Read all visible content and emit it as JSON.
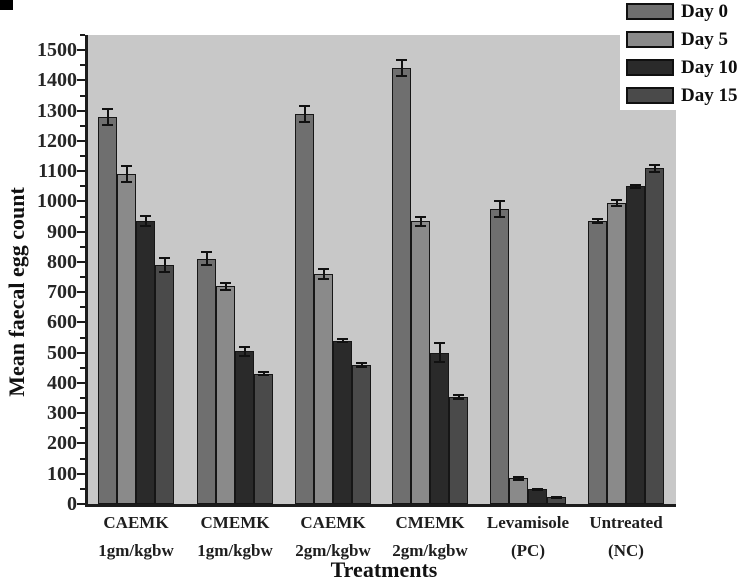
{
  "figure": {
    "background": "#ffffff",
    "corner_mark_color": "#000000"
  },
  "chart_data": {
    "type": "bar",
    "title": "",
    "xlabel": "Treatments",
    "ylabel": "Mean faecal egg count",
    "categories": [
      [
        "CAEMK",
        "1gm/kgbw"
      ],
      [
        "CMEMK",
        "1gm/kgbw"
      ],
      [
        "CAEMK",
        "2gm/kgbw"
      ],
      [
        "CMEMK",
        "2gm/kgbw"
      ],
      [
        "Levamisole",
        "(PC)"
      ],
      [
        "Untreated",
        "(NC)"
      ]
    ],
    "series": [
      {
        "name": "Day 0",
        "color": "#6f6f6f",
        "values": [
          1280,
          810,
          1290,
          1440,
          975,
          935
        ],
        "errors": [
          30,
          25,
          30,
          30,
          30,
          10
        ]
      },
      {
        "name": "Day 5",
        "color": "#8a8a8a",
        "values": [
          1090,
          720,
          760,
          935,
          85,
          995
        ],
        "errors": [
          30,
          15,
          20,
          18,
          8,
          12
        ]
      },
      {
        "name": "Day 10",
        "color": "#2a2a2a",
        "values": [
          935,
          505,
          540,
          500,
          48,
          1050
        ],
        "errors": [
          20,
          18,
          8,
          35,
          5,
          8
        ]
      },
      {
        "name": "Day 15",
        "color": "#4a4a4a",
        "values": [
          790,
          430,
          460,
          355,
          22,
          1110
        ],
        "errors": [
          25,
          8,
          10,
          10,
          4,
          15
        ]
      }
    ],
    "ylim": [
      0,
      1550
    ],
    "yticks": [
      0,
      100,
      200,
      300,
      400,
      500,
      600,
      700,
      800,
      900,
      1000,
      1100,
      1200,
      1300,
      1400,
      1500
    ],
    "ytick_minor_step": 50,
    "grid": false,
    "legend_position": "top-right",
    "plot_background": "#c8c8c8",
    "axis_color": "#1c1c1c",
    "error_bar_color": "#111111"
  }
}
